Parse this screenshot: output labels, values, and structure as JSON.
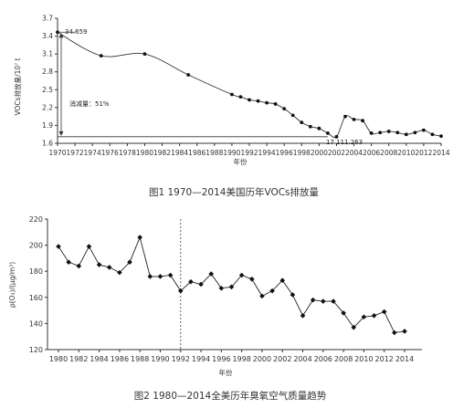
{
  "chart_data": [
    {
      "type": "line",
      "caption": "图1 1970—2014美国历年VOCs排放量",
      "xlabel": "年份",
      "ylabel": "VOCs排放量/10⁷ t",
      "xlim": [
        1970,
        2014
      ],
      "ylim": [
        1.6,
        3.7
      ],
      "x_ticks": [
        1970,
        1972,
        1974,
        1976,
        1978,
        1980,
        1982,
        1984,
        1986,
        1988,
        1990,
        1992,
        1994,
        1996,
        1998,
        2000,
        2002,
        2004,
        2006,
        2008,
        2010,
        2012,
        2014
      ],
      "y_ticks": [
        1.6,
        1.9,
        2.2,
        2.5,
        2.8,
        3.1,
        3.4,
        3.7
      ],
      "y_tick_labels": [
        "1.6",
        "1.9",
        "2.2",
        "2.5",
        "2.8",
        "3.1",
        "3.4",
        "3.7"
      ],
      "series": [
        {
          "x": [
            1970,
            1975,
            1980,
            1985,
            1990,
            1991,
            1992,
            1993,
            1994,
            1995,
            1996,
            1997,
            1998,
            1999,
            2000,
            2001,
            2002,
            2003,
            2004,
            2005,
            2006,
            2007,
            2008,
            2009,
            2010,
            2011,
            2012,
            2013,
            2014
          ],
          "y": [
            3.466,
            3.07,
            3.1,
            2.75,
            2.42,
            2.38,
            2.33,
            2.31,
            2.28,
            2.26,
            2.18,
            2.07,
            1.95,
            1.88,
            1.85,
            1.77,
            1.71,
            2.05,
            2.0,
            1.98,
            1.77,
            1.78,
            1.8,
            1.78,
            1.75,
            1.78,
            1.82,
            1.75,
            1.72
          ]
        }
      ],
      "annotations": [
        {
          "text": "34.659",
          "x": 1970,
          "y": 3.466
        },
        {
          "text": "17 111.263",
          "x": 2001,
          "y": 1.71
        },
        {
          "text": "消减量：51%"
        }
      ]
    },
    {
      "type": "line",
      "caption": "图2 1980—2014全美历年臭氧空气质量趋势",
      "xlabel": "年份",
      "ylabel": "ρ(O₃)/(μg/m³)",
      "xlim": [
        1980,
        2014
      ],
      "ylim": [
        120,
        220
      ],
      "x_ticks": [
        1980,
        1982,
        1984,
        1986,
        1988,
        1990,
        1992,
        1994,
        1996,
        1998,
        2000,
        2002,
        2004,
        2006,
        2008,
        2010,
        2012,
        2014
      ],
      "y_ticks": [
        120,
        140,
        160,
        180,
        200,
        220
      ],
      "reference_line_x": 1992,
      "series": [
        {
          "x": [
            1980,
            1981,
            1982,
            1983,
            1984,
            1985,
            1986,
            1987,
            1988,
            1989,
            1990,
            1991,
            1992,
            1993,
            1994,
            1995,
            1996,
            1997,
            1998,
            1999,
            2000,
            2001,
            2002,
            2003,
            2004,
            2005,
            2006,
            2007,
            2008,
            2009,
            2010,
            2011,
            2012,
            2013,
            2014
          ],
          "y": [
            199,
            187,
            184,
            199,
            185,
            183,
            179,
            187,
            206,
            176,
            176,
            177,
            165,
            172,
            170,
            178,
            167,
            168,
            177,
            174,
            161,
            165,
            173,
            162,
            146,
            158,
            157,
            157,
            148,
            137,
            145,
            146,
            149,
            133,
            134
          ]
        }
      ]
    }
  ]
}
